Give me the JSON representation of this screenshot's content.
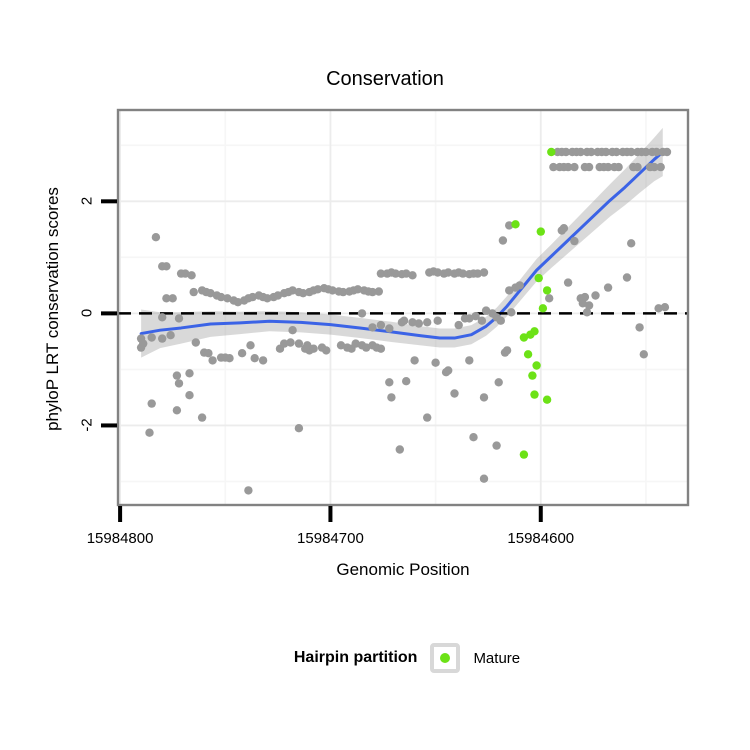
{
  "title": "Conservation",
  "x_axis": {
    "label": "Genomic Position"
  },
  "y_axis": {
    "label": "phyloP LRT conservation scores"
  },
  "legend": {
    "title": "Hairpin partition",
    "items": [
      {
        "label": "Mature",
        "color": "#6CE216"
      }
    ]
  },
  "colors": {
    "point_gray": "#999999",
    "mature_green": "#6CE216",
    "smooth_blue": "#3B63E6",
    "band_gray": "rgba(145,145,145,0.35)",
    "panel_border": "#828282",
    "grid_major": "#ECECEC",
    "grid_minor": "#F6F6F6",
    "zero_line": "#000000",
    "tick": "#000000"
  },
  "chart_data": {
    "type": "scatter",
    "title": "Conservation",
    "xlabel": "Genomic Position",
    "ylabel": "phyloP LRT conservation scores",
    "x_reversed": true,
    "xlim": [
      15984801,
      15984530
    ],
    "ylim": [
      3.63,
      -3.42
    ],
    "x_ticks": [
      15984800,
      15984700,
      15984600
    ],
    "x_minor_ticks": [
      15984750,
      15984650,
      15984550
    ],
    "y_ticks": [
      2,
      0,
      -2
    ],
    "y_minor_ticks": [
      3,
      1,
      -1,
      -3
    ],
    "hline": {
      "y": 0,
      "style": "dashed",
      "color": "#000000"
    },
    "series": [
      {
        "name": "unlabeled",
        "color": "#999999",
        "points": [
          [
            15984592,
            2.88
          ],
          [
            15984590,
            2.88
          ],
          [
            15984588,
            2.88
          ],
          [
            15984585,
            2.88
          ],
          [
            15984583,
            2.88
          ],
          [
            15984581,
            2.88
          ],
          [
            15984578,
            2.88
          ],
          [
            15984576,
            2.88
          ],
          [
            15984573,
            2.88
          ],
          [
            15984571,
            2.88
          ],
          [
            15984569,
            2.88
          ],
          [
            15984566,
            2.88
          ],
          [
            15984564,
            2.88
          ],
          [
            15984561,
            2.88
          ],
          [
            15984559,
            2.88
          ],
          [
            15984557,
            2.88
          ],
          [
            15984554,
            2.88
          ],
          [
            15984552,
            2.88
          ],
          [
            15984550,
            2.88
          ],
          [
            15984547,
            2.88
          ],
          [
            15984545,
            2.88
          ],
          [
            15984542,
            2.88
          ],
          [
            15984540,
            2.88
          ],
          [
            15984594,
            2.61
          ],
          [
            15984591,
            2.61
          ],
          [
            15984589,
            2.61
          ],
          [
            15984587,
            2.61
          ],
          [
            15984584,
            2.61
          ],
          [
            15984579,
            2.61
          ],
          [
            15984577,
            2.61
          ],
          [
            15984572,
            2.61
          ],
          [
            15984570,
            2.61
          ],
          [
            15984568,
            2.61
          ],
          [
            15984565,
            2.61
          ],
          [
            15984563,
            2.61
          ],
          [
            15984556,
            2.61
          ],
          [
            15984554,
            2.61
          ],
          [
            15984548,
            2.61
          ],
          [
            15984546,
            2.61
          ],
          [
            15984543,
            2.61
          ],
          [
            15984783,
            1.36
          ],
          [
            15984780,
            0.84
          ],
          [
            15984778,
            0.84
          ],
          [
            15984771,
            0.71
          ],
          [
            15984769,
            0.71
          ],
          [
            15984766,
            0.68
          ],
          [
            15984778,
            0.27
          ],
          [
            15984775,
            0.27
          ],
          [
            15984765,
            0.38
          ],
          [
            15984761,
            0.41
          ],
          [
            15984759,
            0.38
          ],
          [
            15984757,
            0.36
          ],
          [
            15984754,
            0.32
          ],
          [
            15984752,
            0.29
          ],
          [
            15984749,
            0.27
          ],
          [
            15984746,
            0.23
          ],
          [
            15984744,
            0.2
          ],
          [
            15984741,
            0.23
          ],
          [
            15984739,
            0.27
          ],
          [
            15984737,
            0.29
          ],
          [
            15984734,
            0.32
          ],
          [
            15984732,
            0.29
          ],
          [
            15984730,
            0.27
          ],
          [
            15984727,
            0.29
          ],
          [
            15984725,
            0.32
          ],
          [
            15984722,
            0.36
          ],
          [
            15984720,
            0.38
          ],
          [
            15984718,
            0.41
          ],
          [
            15984715,
            0.38
          ],
          [
            15984713,
            0.36
          ],
          [
            15984710,
            0.38
          ],
          [
            15984708,
            0.41
          ],
          [
            15984706,
            0.43
          ],
          [
            15984703,
            0.45
          ],
          [
            15984701,
            0.43
          ],
          [
            15984699,
            0.41
          ],
          [
            15984696,
            0.39
          ],
          [
            15984694,
            0.38
          ],
          [
            15984691,
            0.39
          ],
          [
            15984689,
            0.41
          ],
          [
            15984687,
            0.43
          ],
          [
            15984684,
            0.41
          ],
          [
            15984682,
            0.39
          ],
          [
            15984680,
            0.38
          ],
          [
            15984677,
            0.39
          ],
          [
            15984676,
            0.71
          ],
          [
            15984673,
            0.71
          ],
          [
            15984671,
            0.73
          ],
          [
            15984669,
            0.71
          ],
          [
            15984666,
            0.7
          ],
          [
            15984664,
            0.71
          ],
          [
            15984661,
            0.68
          ],
          [
            15984653,
            0.73
          ],
          [
            15984651,
            0.75
          ],
          [
            15984649,
            0.73
          ],
          [
            15984646,
            0.71
          ],
          [
            15984644,
            0.73
          ],
          [
            15984641,
            0.71
          ],
          [
            15984639,
            0.73
          ],
          [
            15984637,
            0.71
          ],
          [
            15984634,
            0.7
          ],
          [
            15984632,
            0.71
          ],
          [
            15984630,
            0.71
          ],
          [
            15984627,
            0.73
          ],
          [
            15984790,
            -0.45
          ],
          [
            15984789,
            -0.54
          ],
          [
            15984790,
            -0.61
          ],
          [
            15984785,
            -0.43
          ],
          [
            15984780,
            -0.45
          ],
          [
            15984776,
            -0.39
          ],
          [
            15984780,
            -0.07
          ],
          [
            15984772,
            -0.09
          ],
          [
            15984773,
            -1.11
          ],
          [
            15984767,
            -1.07
          ],
          [
            15984772,
            -1.25
          ],
          [
            15984767,
            -1.46
          ],
          [
            15984785,
            -1.61
          ],
          [
            15984773,
            -1.73
          ],
          [
            15984761,
            -1.86
          ],
          [
            15984786,
            -2.13
          ],
          [
            15984739,
            -3.16
          ],
          [
            15984715,
            -2.05
          ],
          [
            15984764,
            -0.52
          ],
          [
            15984760,
            -0.7
          ],
          [
            15984758,
            -0.71
          ],
          [
            15984756,
            -0.84
          ],
          [
            15984752,
            -0.79
          ],
          [
            15984750,
            -0.79
          ],
          [
            15984748,
            -0.8
          ],
          [
            15984742,
            -0.71
          ],
          [
            15984738,
            -0.57
          ],
          [
            15984736,
            -0.8
          ],
          [
            15984732,
            -0.84
          ],
          [
            15984724,
            -0.63
          ],
          [
            15984722,
            -0.54
          ],
          [
            15984719,
            -0.52
          ],
          [
            15984718,
            -0.3
          ],
          [
            15984715,
            -0.54
          ],
          [
            15984712,
            -0.63
          ],
          [
            15984710,
            -0.66
          ],
          [
            15984711,
            -0.57
          ],
          [
            15984708,
            -0.63
          ],
          [
            15984704,
            -0.61
          ],
          [
            15984702,
            -0.66
          ],
          [
            15984695,
            -0.57
          ],
          [
            15984692,
            -0.61
          ],
          [
            15984690,
            -0.63
          ],
          [
            15984688,
            -0.54
          ],
          [
            15984685,
            -0.57
          ],
          [
            15984683,
            -0.61
          ],
          [
            15984680,
            -0.57
          ],
          [
            15984678,
            -0.61
          ],
          [
            15984676,
            -0.63
          ],
          [
            15984685,
            0.0
          ],
          [
            15984680,
            -0.25
          ],
          [
            15984676,
            -0.21
          ],
          [
            15984672,
            -0.27
          ],
          [
            15984666,
            -0.16
          ],
          [
            15984665,
            -0.13
          ],
          [
            15984661,
            -0.16
          ],
          [
            15984658,
            -0.18
          ],
          [
            15984654,
            -0.16
          ],
          [
            15984649,
            -0.13
          ],
          [
            15984639,
            -0.21
          ],
          [
            15984636,
            -0.09
          ],
          [
            15984634,
            -0.09
          ],
          [
            15984631,
            -0.05
          ],
          [
            15984628,
            -0.13
          ],
          [
            15984626,
            0.05
          ],
          [
            15984623,
            0.0
          ],
          [
            15984621,
            -0.07
          ],
          [
            15984619,
            -0.13
          ],
          [
            15984614,
            0.02
          ],
          [
            15984672,
            -1.23
          ],
          [
            15984664,
            -1.21
          ],
          [
            15984671,
            -1.5
          ],
          [
            15984660,
            -0.84
          ],
          [
            15984650,
            -0.88
          ],
          [
            15984645,
            -1.05
          ],
          [
            15984644,
            -1.02
          ],
          [
            15984634,
            -0.84
          ],
          [
            15984654,
            -1.86
          ],
          [
            15984641,
            -1.43
          ],
          [
            15984667,
            -2.43
          ],
          [
            15984632,
            -2.21
          ],
          [
            15984621,
            -2.36
          ],
          [
            15984627,
            -2.95
          ],
          [
            15984627,
            -1.5
          ],
          [
            15984620,
            -1.23
          ],
          [
            15984617,
            -0.7
          ],
          [
            15984618,
            1.3
          ],
          [
            15984615,
            1.57
          ],
          [
            15984590,
            1.48
          ],
          [
            15984615,
            0.41
          ],
          [
            15984612,
            0.46
          ],
          [
            15984610,
            0.5
          ],
          [
            15984596,
            0.27
          ],
          [
            15984587,
            0.55
          ],
          [
            15984581,
            0.27
          ],
          [
            15984616,
            -0.66
          ],
          [
            15984589,
            1.52
          ],
          [
            15984584,
            1.29
          ],
          [
            15984557,
            1.25
          ],
          [
            15984559,
            0.64
          ],
          [
            15984568,
            0.46
          ],
          [
            15984574,
            0.32
          ],
          [
            15984579,
            0.29
          ],
          [
            15984580,
            0.18
          ],
          [
            15984577,
            0.14
          ],
          [
            15984578,
            0.02
          ],
          [
            15984544,
            0.09
          ],
          [
            15984541,
            0.11
          ],
          [
            15984553,
            -0.25
          ],
          [
            15984551,
            -0.73
          ]
        ]
      },
      {
        "name": "Mature",
        "color": "#6CE216",
        "points": [
          [
            15984595,
            2.88
          ],
          [
            15984612,
            1.59
          ],
          [
            15984600,
            1.46
          ],
          [
            15984601,
            0.63
          ],
          [
            15984597,
            0.41
          ],
          [
            15984599,
            0.09
          ],
          [
            15984608,
            -0.43
          ],
          [
            15984605,
            -0.38
          ],
          [
            15984603,
            -0.32
          ],
          [
            15984606,
            -0.73
          ],
          [
            15984602,
            -0.93
          ],
          [
            15984604,
            -1.11
          ],
          [
            15984603,
            -1.45
          ],
          [
            15984597,
            -1.54
          ],
          [
            15984608,
            -2.52
          ]
        ]
      }
    ],
    "smooth": {
      "color": "#3B63E6",
      "band_color": "rgba(145,145,145,0.35)",
      "points": [
        [
          15984790,
          -0.36,
          0.07,
          -0.79
        ],
        [
          15984781,
          -0.3,
          0.02,
          -0.62
        ],
        [
          15984771,
          -0.26,
          0.02,
          -0.54
        ],
        [
          15984757,
          -0.19,
          0.04,
          -0.42
        ],
        [
          15984743,
          -0.17,
          0.03,
          -0.37
        ],
        [
          15984729,
          -0.14,
          0.04,
          -0.32
        ],
        [
          15984714,
          -0.16,
          0.02,
          -0.34
        ],
        [
          15984700,
          -0.2,
          -0.02,
          -0.38
        ],
        [
          15984686,
          -0.26,
          -0.08,
          -0.44
        ],
        [
          15984671,
          -0.33,
          -0.15,
          -0.51
        ],
        [
          15984657,
          -0.4,
          -0.23,
          -0.57
        ],
        [
          15984648,
          -0.44,
          -0.27,
          -0.61
        ],
        [
          15984641,
          -0.44,
          -0.27,
          -0.61
        ],
        [
          15984633,
          -0.38,
          -0.21,
          -0.55
        ],
        [
          15984626,
          -0.23,
          -0.06,
          -0.4
        ],
        [
          15984621,
          -0.07,
          0.1,
          -0.24
        ],
        [
          15984616,
          0.13,
          0.31,
          -0.05
        ],
        [
          15984609,
          0.45,
          0.64,
          0.26
        ],
        [
          15984602,
          0.77,
          0.97,
          0.57
        ],
        [
          15984595,
          1.02,
          1.23,
          0.81
        ],
        [
          15984588,
          1.27,
          1.5,
          1.04
        ],
        [
          15984581,
          1.52,
          1.77,
          1.27
        ],
        [
          15984574,
          1.77,
          2.04,
          1.5
        ],
        [
          15984567,
          2.02,
          2.31,
          1.73
        ],
        [
          15984560,
          2.25,
          2.57,
          1.93
        ],
        [
          15984553,
          2.5,
          2.85,
          2.15
        ],
        [
          15984546,
          2.75,
          3.14,
          2.36
        ],
        [
          15984542,
          2.88,
          3.31,
          2.45
        ]
      ]
    }
  }
}
